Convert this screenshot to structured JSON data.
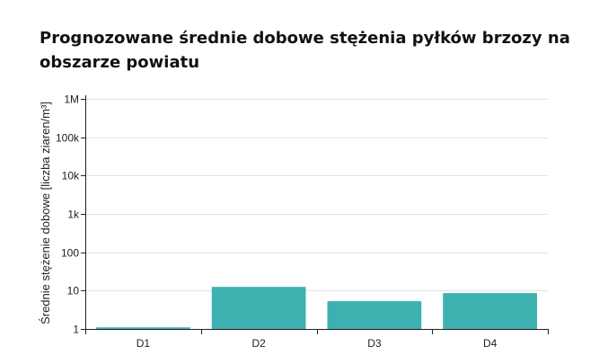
{
  "chart_data": {
    "type": "bar",
    "title": "Prognozowane średnie dobowe stężenia pyłków brzozy na obszarze powiatu",
    "xlabel": "",
    "ylabel": "Średnie stężenie dobowe [liczba ziaren/m³]",
    "categories": [
      "D1",
      "D2",
      "D3",
      "D4"
    ],
    "values": [
      1.1,
      12.5,
      5.3,
      8.6
    ],
    "yscale": "log",
    "ylim": [
      1,
      1000000
    ],
    "yticks": [
      {
        "value": 1,
        "label": "1"
      },
      {
        "value": 10,
        "label": "10"
      },
      {
        "value": 100,
        "label": "100"
      },
      {
        "value": 1000,
        "label": "1k"
      },
      {
        "value": 10000,
        "label": "10k"
      },
      {
        "value": 100000,
        "label": "100k"
      },
      {
        "value": 1000000,
        "label": "1M"
      }
    ],
    "grid": true,
    "bar_color": "#3db1b0",
    "grid_color": "#e3e3e3",
    "axis_color": "#222222"
  }
}
